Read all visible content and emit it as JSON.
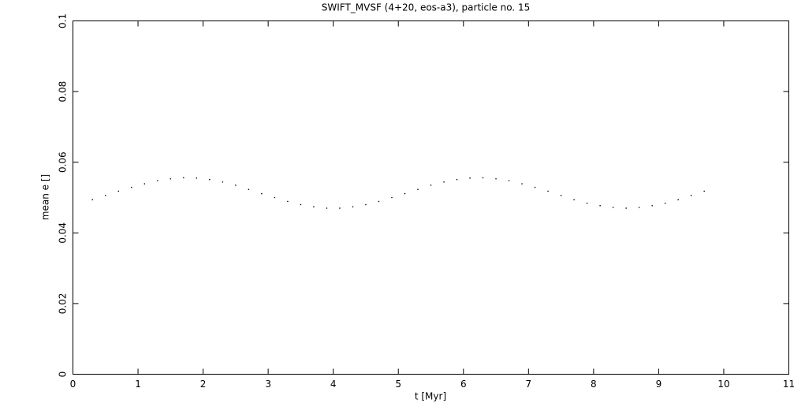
{
  "chart_data": {
    "type": "scatter",
    "title": "SWIFT_MVSF (4+20, eos-a3), particle no. 15",
    "xlabel": "t [Myr]",
    "ylabel": "mean e []",
    "xlim": [
      0,
      11
    ],
    "xticks": [
      0,
      1,
      2,
      3,
      4,
      5,
      6,
      7,
      8,
      9,
      10,
      11
    ],
    "ylim": [
      0,
      0.1
    ],
    "yticks": [
      0,
      0.02,
      0.04,
      0.06,
      0.08,
      0.1
    ],
    "color": "#000000",
    "x": [
      0.3,
      0.5,
      0.7,
      0.9,
      1.1,
      1.3,
      1.5,
      1.7,
      1.9,
      2.1,
      2.3,
      2.5,
      2.7,
      2.9,
      3.1,
      3.3,
      3.5,
      3.7,
      3.9,
      4.1,
      4.3,
      4.5,
      4.7,
      4.9,
      5.1,
      5.3,
      5.5,
      5.7,
      5.9,
      6.1,
      6.3,
      6.5,
      6.7,
      6.9,
      7.1,
      7.3,
      7.5,
      7.7,
      7.9,
      8.1,
      8.3,
      8.5,
      8.7,
      8.9,
      9.1,
      9.3,
      9.5,
      9.7
    ],
    "values": [
      0.0494,
      0.0506,
      0.0518,
      0.0529,
      0.0539,
      0.0548,
      0.0553,
      0.0556,
      0.0555,
      0.0551,
      0.0544,
      0.0535,
      0.0523,
      0.0511,
      0.05,
      0.0489,
      0.048,
      0.0474,
      0.047,
      0.047,
      0.0474,
      0.048,
      0.0489,
      0.05,
      0.0511,
      0.0523,
      0.0535,
      0.0544,
      0.0551,
      0.0555,
      0.0556,
      0.0553,
      0.0548,
      0.0539,
      0.0529,
      0.0518,
      0.0506,
      0.0494,
      0.0484,
      0.0477,
      0.0472,
      0.047,
      0.0472,
      0.0477,
      0.0484,
      0.0494,
      0.0506,
      0.0518
    ]
  }
}
